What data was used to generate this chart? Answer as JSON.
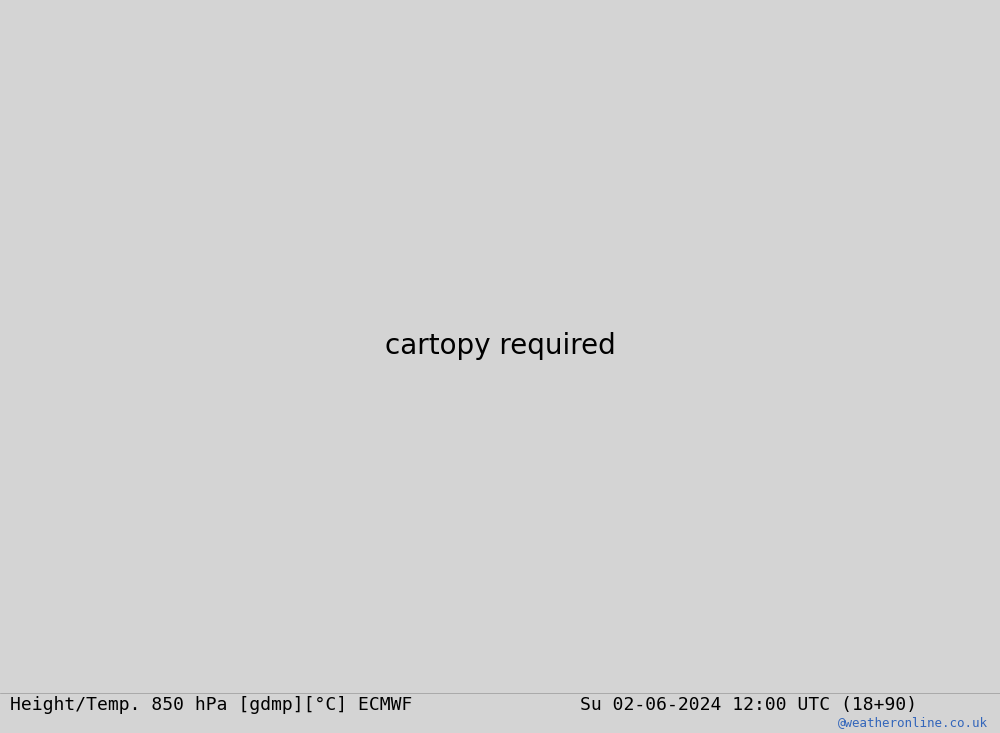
{
  "title_left": "Height/Temp. 850 hPa [gdmp][°C] ECMWF",
  "title_right": "Su 02-06-2024 12:00 UTC (18+90)",
  "watermark": "@weatheronline.co.uk",
  "bg_color": "#d4d4d4",
  "ocean_color": "#d4d4d4",
  "land_green_color": "#c8f0a0",
  "land_gray_color": "#c8c8c8",
  "title_fontsize": 13,
  "watermark_color": "#3366bb",
  "watermark_fontsize": 9,
  "lon_min": -95,
  "lon_max": 25,
  "lat_min": -72,
  "lat_max": 32
}
